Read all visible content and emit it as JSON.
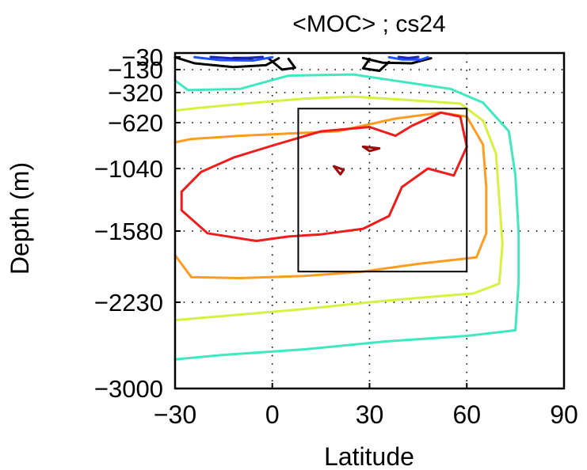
{
  "chart_data": {
    "type": "contour",
    "title": "<MOC> ; cs24",
    "xlabel": "Latitude",
    "ylabel": "Depth (m)",
    "xlim": [
      -30,
      90
    ],
    "x_ticks": [
      -30,
      0,
      30,
      60,
      90
    ],
    "x_tick_labels": [
      "−30",
      "0",
      "30",
      "60",
      "90"
    ],
    "y_ticks": [
      -30,
      -130,
      -320,
      -620,
      -1040,
      -1580,
      -2230,
      -3000
    ],
    "y_tick_labels": [
      "−30",
      "−130",
      "−320",
      "−620",
      "−1040",
      "−1580",
      "−2230",
      "−3000"
    ],
    "grid": "dotted",
    "box": {
      "lat": [
        8,
        60
      ],
      "depth": [
        -480,
        -1950
      ]
    },
    "contours": [
      {
        "color": "#40e8c0",
        "points": [
          [
            -30,
            -220
          ],
          [
            -26,
            -300
          ],
          [
            -10,
            -290
          ],
          [
            5,
            -180
          ],
          [
            25,
            -170
          ],
          [
            40,
            -230
          ],
          [
            55,
            -290
          ],
          [
            65,
            -420
          ],
          [
            73,
            -700
          ],
          [
            75,
            -1100
          ],
          [
            76,
            -1600
          ],
          [
            76,
            -2050
          ],
          [
            75,
            -2480
          ],
          [
            60,
            -2530
          ],
          [
            35,
            -2580
          ],
          [
            10,
            -2650
          ],
          [
            -15,
            -2700
          ],
          [
            -30,
            -2740
          ]
        ]
      },
      {
        "color": "#d8f040",
        "points": [
          [
            -30,
            -500
          ],
          [
            -22,
            -470
          ],
          [
            -5,
            -420
          ],
          [
            10,
            -380
          ],
          [
            25,
            -360
          ],
          [
            40,
            -390
          ],
          [
            58,
            -430
          ],
          [
            65,
            -600
          ],
          [
            69,
            -900
          ],
          [
            70,
            -1300
          ],
          [
            71,
            -1700
          ],
          [
            70,
            -2060
          ],
          [
            62,
            -2150
          ],
          [
            45,
            -2190
          ],
          [
            30,
            -2230
          ],
          [
            10,
            -2290
          ],
          [
            -10,
            -2340
          ],
          [
            -30,
            -2390
          ]
        ]
      },
      {
        "color": "#ff9c20",
        "points": [
          [
            -30,
            -800
          ],
          [
            -25,
            -770
          ],
          [
            -10,
            -740
          ],
          [
            5,
            -720
          ],
          [
            20,
            -700
          ],
          [
            38,
            -580
          ],
          [
            52,
            -520
          ],
          [
            60,
            -560
          ],
          [
            65,
            -820
          ],
          [
            66,
            -1200
          ],
          [
            66,
            -1600
          ],
          [
            63,
            -1820
          ],
          [
            45,
            -1880
          ],
          [
            28,
            -1950
          ],
          [
            10,
            -1990
          ],
          [
            -10,
            -2010
          ],
          [
            -25,
            -2000
          ],
          [
            -30,
            -1800
          ]
        ]
      },
      {
        "color": "#f01c1c",
        "points": [
          [
            -28,
            -1240
          ],
          [
            -22,
            -1070
          ],
          [
            -12,
            -940
          ],
          [
            0,
            -830
          ],
          [
            15,
            -700
          ],
          [
            30,
            -660
          ],
          [
            38,
            -740
          ],
          [
            43,
            -650
          ],
          [
            52,
            -520
          ],
          [
            58,
            -560
          ],
          [
            60,
            -840
          ],
          [
            56,
            -1100
          ],
          [
            48,
            -1040
          ],
          [
            40,
            -1200
          ],
          [
            36,
            -1450
          ],
          [
            28,
            -1560
          ],
          [
            15,
            -1610
          ],
          [
            5,
            -1630
          ],
          [
            -5,
            -1670
          ],
          [
            -20,
            -1600
          ],
          [
            -28,
            -1400
          ],
          [
            -28,
            -1240
          ]
        ]
      },
      {
        "color": "#9c0c0c",
        "points": [
          [
            19,
            -1020
          ],
          [
            22,
            -1050
          ],
          [
            21,
            -1090
          ],
          [
            19,
            -1020
          ]
        ]
      },
      {
        "color": "#9c0c0c",
        "points": [
          [
            28,
            -840
          ],
          [
            33,
            -855
          ],
          [
            30,
            -880
          ],
          [
            28,
            -840
          ]
        ]
      },
      {
        "color": "#000000",
        "points": [
          [
            -30,
            -32
          ],
          [
            -24,
            -80
          ],
          [
            -12,
            -110
          ],
          [
            -2,
            -95
          ],
          [
            2,
            -40
          ]
        ]
      },
      {
        "color": "#000000",
        "points": [
          [
            28,
            -38
          ],
          [
            34,
            -75
          ],
          [
            43,
            -80
          ],
          [
            49,
            -40
          ]
        ]
      },
      {
        "color": "#000000",
        "points": [
          [
            -12,
            -38
          ],
          [
            -9,
            -48
          ],
          [
            -6,
            -38
          ],
          [
            -12,
            -38
          ]
        ]
      },
      {
        "color": "#000000",
        "points": [
          [
            -1,
            -45
          ],
          [
            3,
            -130
          ],
          [
            7,
            -115
          ],
          [
            5,
            -45
          ]
        ]
      },
      {
        "color": "#000000",
        "points": [
          [
            30,
            -45
          ],
          [
            28,
            -120
          ],
          [
            33,
            -140
          ],
          [
            36,
            -70
          ]
        ]
      },
      {
        "color": "#2050ff",
        "points": [
          [
            -24,
            -32
          ],
          [
            -16,
            -55
          ],
          [
            -6,
            -58
          ],
          [
            0,
            -32
          ]
        ]
      },
      {
        "color": "#1c24c0",
        "points": [
          [
            -19,
            -30
          ],
          [
            -11,
            -43
          ],
          [
            -3,
            -30
          ]
        ]
      },
      {
        "color": "#2050ff",
        "points": [
          [
            36,
            -32
          ],
          [
            40,
            -50
          ],
          [
            46,
            -50
          ],
          [
            48,
            -32
          ]
        ]
      },
      {
        "color": "#1c24c0",
        "points": [
          [
            39,
            -30
          ],
          [
            42,
            -39
          ],
          [
            45,
            -30
          ]
        ]
      }
    ]
  }
}
